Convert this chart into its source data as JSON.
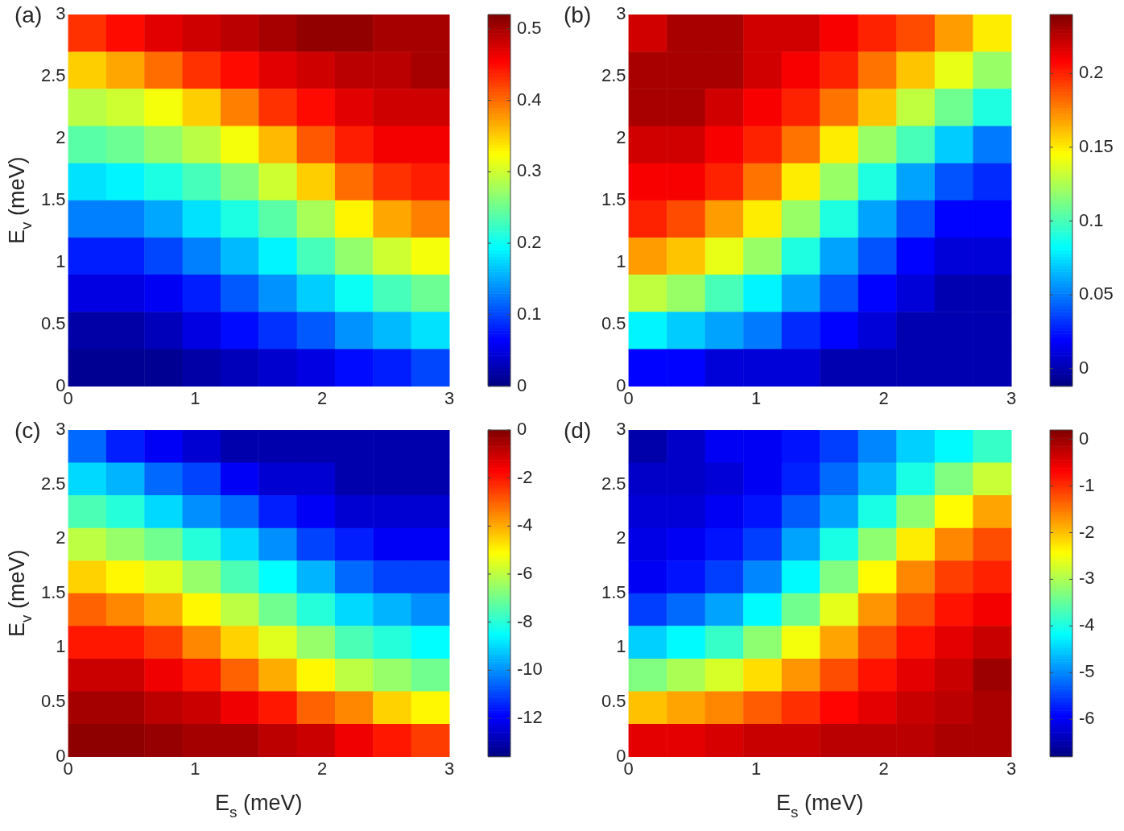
{
  "chart_data": [
    {
      "type": "heatmap",
      "title": "(a)",
      "ylabel": "E$_{v}$ (meV)",
      "xlim": [
        0,
        3
      ],
      "ylim": [
        0,
        3
      ],
      "xticks": [
        0,
        1,
        2,
        3
      ],
      "yticks": [
        0,
        0.5,
        1,
        1.5,
        2,
        2.5,
        3
      ],
      "clim": [
        0,
        0.52
      ],
      "cticks": [
        0,
        0.1,
        0.2,
        0.3,
        0.4,
        0.5
      ],
      "cells": [
        [
          0.43,
          0.45,
          0.47,
          0.48,
          0.49,
          0.5,
          0.51,
          0.51,
          0.5,
          0.5
        ],
        [
          0.35,
          0.37,
          0.4,
          0.43,
          0.45,
          0.47,
          0.48,
          0.49,
          0.49,
          0.5
        ],
        [
          0.29,
          0.3,
          0.32,
          0.35,
          0.39,
          0.43,
          0.45,
          0.47,
          0.48,
          0.48
        ],
        [
          0.24,
          0.25,
          0.27,
          0.29,
          0.32,
          0.36,
          0.41,
          0.44,
          0.46,
          0.46
        ],
        [
          0.18,
          0.19,
          0.21,
          0.23,
          0.26,
          0.3,
          0.35,
          0.4,
          0.43,
          0.44
        ],
        [
          0.13,
          0.13,
          0.15,
          0.18,
          0.21,
          0.24,
          0.28,
          0.33,
          0.37,
          0.39
        ],
        [
          0.08,
          0.08,
          0.1,
          0.13,
          0.16,
          0.19,
          0.23,
          0.27,
          0.3,
          0.32
        ],
        [
          0.05,
          0.05,
          0.06,
          0.08,
          0.11,
          0.14,
          0.17,
          0.2,
          0.23,
          0.25
        ],
        [
          0.02,
          0.02,
          0.03,
          0.05,
          0.07,
          0.09,
          0.11,
          0.14,
          0.16,
          0.18
        ],
        [
          0.01,
          0.01,
          0.01,
          0.02,
          0.03,
          0.04,
          0.05,
          0.07,
          0.08,
          0.1
        ]
      ]
    },
    {
      "type": "heatmap",
      "title": "(b)",
      "xlim": [
        0,
        3
      ],
      "ylim": [
        0,
        3
      ],
      "xticks": [
        0,
        1,
        2,
        3
      ],
      "yticks": [
        0,
        0.5,
        1,
        1.5,
        2,
        2.5,
        3
      ],
      "clim": [
        -0.012,
        0.24
      ],
      "cticks": [
        0,
        0.05,
        0.1,
        0.15,
        0.2
      ],
      "cells": [
        [
          0.22,
          0.23,
          0.23,
          0.22,
          0.22,
          0.21,
          0.2,
          0.19,
          0.17,
          0.15
        ],
        [
          0.23,
          0.23,
          0.23,
          0.22,
          0.21,
          0.2,
          0.18,
          0.16,
          0.14,
          0.12
        ],
        [
          0.23,
          0.23,
          0.22,
          0.21,
          0.2,
          0.18,
          0.16,
          0.13,
          0.11,
          0.09
        ],
        [
          0.22,
          0.22,
          0.21,
          0.2,
          0.18,
          0.15,
          0.12,
          0.1,
          0.07,
          0.05
        ],
        [
          0.21,
          0.21,
          0.2,
          0.18,
          0.15,
          0.12,
          0.09,
          0.06,
          0.04,
          0.03
        ],
        [
          0.2,
          0.19,
          0.17,
          0.15,
          0.12,
          0.09,
          0.06,
          0.04,
          0.02,
          0.02
        ],
        [
          0.17,
          0.16,
          0.14,
          0.12,
          0.09,
          0.06,
          0.04,
          0.02,
          0.01,
          0.01
        ],
        [
          0.13,
          0.12,
          0.1,
          0.08,
          0.06,
          0.04,
          0.02,
          0.01,
          0.0,
          0.0
        ],
        [
          0.08,
          0.07,
          0.06,
          0.05,
          0.03,
          0.02,
          0.01,
          0.0,
          0.0,
          0.0
        ],
        [
          0.02,
          0.02,
          0.01,
          0.01,
          0.01,
          0.0,
          0.0,
          0.0,
          0.0,
          0.0
        ]
      ]
    },
    {
      "type": "heatmap",
      "title": "(c)",
      "xlabel": "E$_{s}$ (meV)",
      "ylabel": "E$_{v}$ (meV)",
      "xlim": [
        0,
        3
      ],
      "ylim": [
        0,
        3
      ],
      "xticks": [
        0,
        1,
        2,
        3
      ],
      "yticks": [
        0,
        0.5,
        1,
        1.5,
        2,
        2.5,
        3
      ],
      "clim": [
        -13.6,
        0
      ],
      "cticks": [
        -12,
        -10,
        -8,
        -6,
        -4,
        -2,
        0
      ],
      "cells": [
        [
          -10.5,
          -11.5,
          -12,
          -12.5,
          -13,
          -13,
          -13,
          -13,
          -13,
          -13
        ],
        [
          -9,
          -9.5,
          -10.5,
          -11,
          -12,
          -12.5,
          -12.5,
          -13,
          -13,
          -13
        ],
        [
          -7.5,
          -8,
          -9,
          -10,
          -10.5,
          -11.5,
          -12,
          -12.5,
          -12.5,
          -12.5
        ],
        [
          -6,
          -6.5,
          -7,
          -8,
          -9,
          -10,
          -11,
          -11.5,
          -12,
          -12
        ],
        [
          -4.5,
          -5,
          -5.5,
          -6.5,
          -7.5,
          -8.5,
          -9.5,
          -10.5,
          -11,
          -11
        ],
        [
          -3,
          -3.5,
          -4,
          -5,
          -6,
          -7,
          -8,
          -9,
          -9.5,
          -10
        ],
        [
          -2,
          -2,
          -2.5,
          -3.5,
          -4.5,
          -5.5,
          -6.5,
          -7.5,
          -8,
          -8.5
        ],
        [
          -1,
          -1,
          -1.5,
          -2,
          -3,
          -4,
          -5,
          -6,
          -6.5,
          -7
        ],
        [
          -0.5,
          -0.5,
          -0.8,
          -1,
          -1.5,
          -2,
          -3,
          -3.5,
          -4.5,
          -5
        ],
        [
          -0.2,
          -0.2,
          -0.3,
          -0.5,
          -0.5,
          -0.8,
          -1,
          -1.5,
          -2,
          -2.5
        ]
      ]
    },
    {
      "type": "heatmap",
      "title": "(d)",
      "xlabel": "E$_{s}$ (meV)",
      "xlim": [
        0,
        3
      ],
      "ylim": [
        0,
        3
      ],
      "xticks": [
        0,
        1,
        2,
        3
      ],
      "yticks": [
        0,
        0.5,
        1,
        1.5,
        2,
        2.5,
        3
      ],
      "clim": [
        -6.8,
        0.2
      ],
      "cticks": [
        -6,
        -5,
        -4,
        -3,
        -2,
        -1,
        0
      ],
      "cells": [
        [
          -6.5,
          -6.3,
          -6,
          -6,
          -5.8,
          -5.5,
          -5,
          -4.5,
          -4.2,
          -3.8
        ],
        [
          -6.3,
          -6.3,
          -6.2,
          -6,
          -5.7,
          -5.2,
          -4.7,
          -4,
          -3.3,
          -2.8
        ],
        [
          -6.2,
          -6.2,
          -6,
          -5.8,
          -5.3,
          -4.8,
          -4,
          -3.2,
          -2.4,
          -1.8
        ],
        [
          -6.1,
          -6,
          -5.8,
          -5.5,
          -4.8,
          -4,
          -3.2,
          -2.3,
          -1.6,
          -1.2
        ],
        [
          -6,
          -5.8,
          -5.5,
          -5,
          -4.2,
          -3.3,
          -2.4,
          -1.6,
          -1.1,
          -0.9
        ],
        [
          -5.5,
          -5.2,
          -4.8,
          -4.2,
          -3.4,
          -2.6,
          -1.7,
          -1.2,
          -0.8,
          -0.6
        ],
        [
          -4.5,
          -4.2,
          -3.8,
          -3.2,
          -2.5,
          -1.8,
          -1.2,
          -0.8,
          -0.5,
          -0.3
        ],
        [
          -3.3,
          -3,
          -2.7,
          -2.2,
          -1.7,
          -1.2,
          -0.8,
          -0.5,
          -0.3,
          0
        ],
        [
          -2,
          -1.8,
          -1.6,
          -1.3,
          -1,
          -0.7,
          -0.5,
          -0.3,
          -0.2,
          -0.1
        ],
        [
          -0.5,
          -0.5,
          -0.4,
          -0.3,
          -0.3,
          -0.2,
          -0.2,
          -0.2,
          -0.1,
          -0.1
        ]
      ]
    }
  ]
}
